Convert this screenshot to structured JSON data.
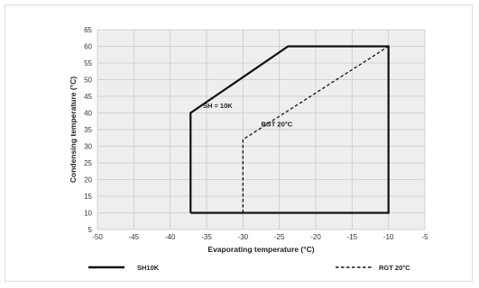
{
  "chart_data": {
    "type": "line",
    "xlabel": "Evaporating temperature (°C)",
    "ylabel": "Condensing temperature (°C)",
    "xlim": [
      -50,
      -5
    ],
    "ylim": [
      5,
      65
    ],
    "xticks": [
      -50,
      -45,
      -40,
      -35,
      -30,
      -25,
      -20,
      -15,
      -10,
      -5
    ],
    "yticks": [
      5,
      10,
      15,
      20,
      25,
      30,
      35,
      40,
      45,
      50,
      55,
      60,
      65
    ],
    "grid": true,
    "background": "#eeeeee",
    "series": [
      {
        "name": "SH10K",
        "style": "solid",
        "color": "#111111",
        "x": [
          -37.2,
          -37.2,
          -23.8,
          -10,
          -10,
          -37.2
        ],
        "y": [
          10,
          40,
          60,
          60,
          10,
          10
        ]
      },
      {
        "name": "RGT 20°C",
        "style": "dashed",
        "color": "#111111",
        "x": [
          -30,
          -30,
          -10
        ],
        "y": [
          10,
          32,
          60
        ]
      }
    ],
    "annotations": [
      {
        "text": "SH = 10K",
        "x": -35.5,
        "y": 41.5
      },
      {
        "text": "RGT 20°C",
        "x": -27.5,
        "y": 36
      }
    ],
    "legend": {
      "placement": "bottom",
      "items": [
        {
          "label": "SH10K",
          "style": "solid"
        },
        {
          "label": "RGT 20°C",
          "style": "dashed"
        }
      ]
    }
  }
}
